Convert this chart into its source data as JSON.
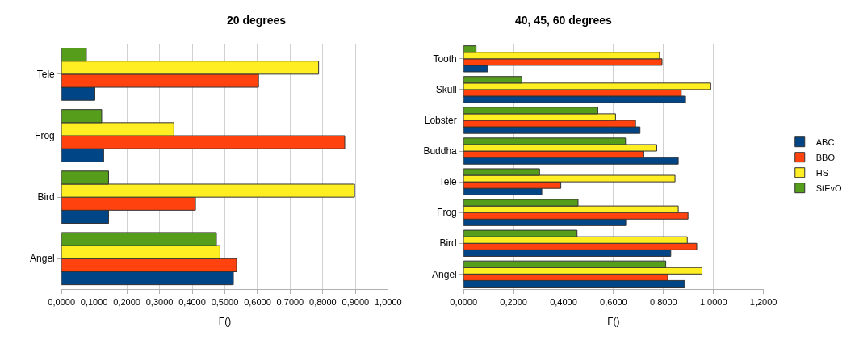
{
  "chart_data": [
    {
      "type": "bar",
      "orientation": "horizontal",
      "title": "20 degrees",
      "xlabel": "F()",
      "categories": [
        "Tele",
        "Frog",
        "Bird",
        "Angel"
      ],
      "series": [
        {
          "name": "ABC",
          "color": "#004586",
          "values": [
            0.102,
            0.129,
            0.144,
            0.526
          ]
        },
        {
          "name": "BBO",
          "color": "#ff420e",
          "values": [
            0.603,
            0.867,
            0.41,
            0.536
          ]
        },
        {
          "name": "HS",
          "color": "#ffee22",
          "values": [
            0.787,
            0.344,
            0.897,
            0.485
          ]
        },
        {
          "name": "StEvO",
          "color": "#579d1c",
          "values": [
            0.076,
            0.123,
            0.144,
            0.474
          ]
        }
      ],
      "xlim": [
        0,
        1
      ],
      "xticks": [
        {
          "value": 0,
          "label": "0,0000"
        },
        {
          "value": 0.1,
          "label": "0,1000"
        },
        {
          "value": 0.2,
          "label": "0,2000"
        },
        {
          "value": 0.3,
          "label": "0,3000"
        },
        {
          "value": 0.4,
          "label": "0,4000"
        },
        {
          "value": 0.5,
          "label": "0,5000"
        },
        {
          "value": 0.6,
          "label": "0,6000"
        },
        {
          "value": 0.7,
          "label": "0,7000"
        },
        {
          "value": 0.8,
          "label": "0,8000"
        },
        {
          "value": 0.9,
          "label": "0,9000"
        },
        {
          "value": 1,
          "label": "1,0000"
        }
      ],
      "grid": "x",
      "legend": "right"
    },
    {
      "type": "bar",
      "orientation": "horizontal",
      "title": "40, 45, 60 degrees",
      "xlabel": "F()",
      "categories": [
        "Tooth",
        "Skull",
        "Lobster",
        "Buddha",
        "Tele",
        "Frog",
        "Bird",
        "Angel"
      ],
      "series": [
        {
          "name": "ABC",
          "color": "#004586",
          "values": [
            0.096,
            0.888,
            0.706,
            0.859,
            0.313,
            0.649,
            0.829,
            0.884
          ]
        },
        {
          "name": "BBO",
          "color": "#ff420e",
          "values": [
            0.794,
            0.871,
            0.688,
            0.721,
            0.389,
            0.898,
            0.933,
            0.817
          ]
        },
        {
          "name": "HS",
          "color": "#ffee22",
          "values": [
            0.784,
            0.989,
            0.608,
            0.773,
            0.846,
            0.859,
            0.895,
            0.954
          ]
        },
        {
          "name": "StEvO",
          "color": "#579d1c",
          "values": [
            0.05,
            0.233,
            0.537,
            0.648,
            0.304,
            0.458,
            0.454,
            0.809
          ]
        }
      ],
      "xlim": [
        0,
        1.2
      ],
      "xticks": [
        {
          "value": 0,
          "label": "0,0000"
        },
        {
          "value": 0.2,
          "label": "0,2000"
        },
        {
          "value": 0.4,
          "label": "0,4000"
        },
        {
          "value": 0.6,
          "label": "0,6000"
        },
        {
          "value": 0.8,
          "label": "0,8000"
        },
        {
          "value": 1,
          "label": "1,0000"
        },
        {
          "value": 1.2,
          "label": "1,2000"
        }
      ],
      "grid": "x",
      "legend": "right"
    }
  ]
}
